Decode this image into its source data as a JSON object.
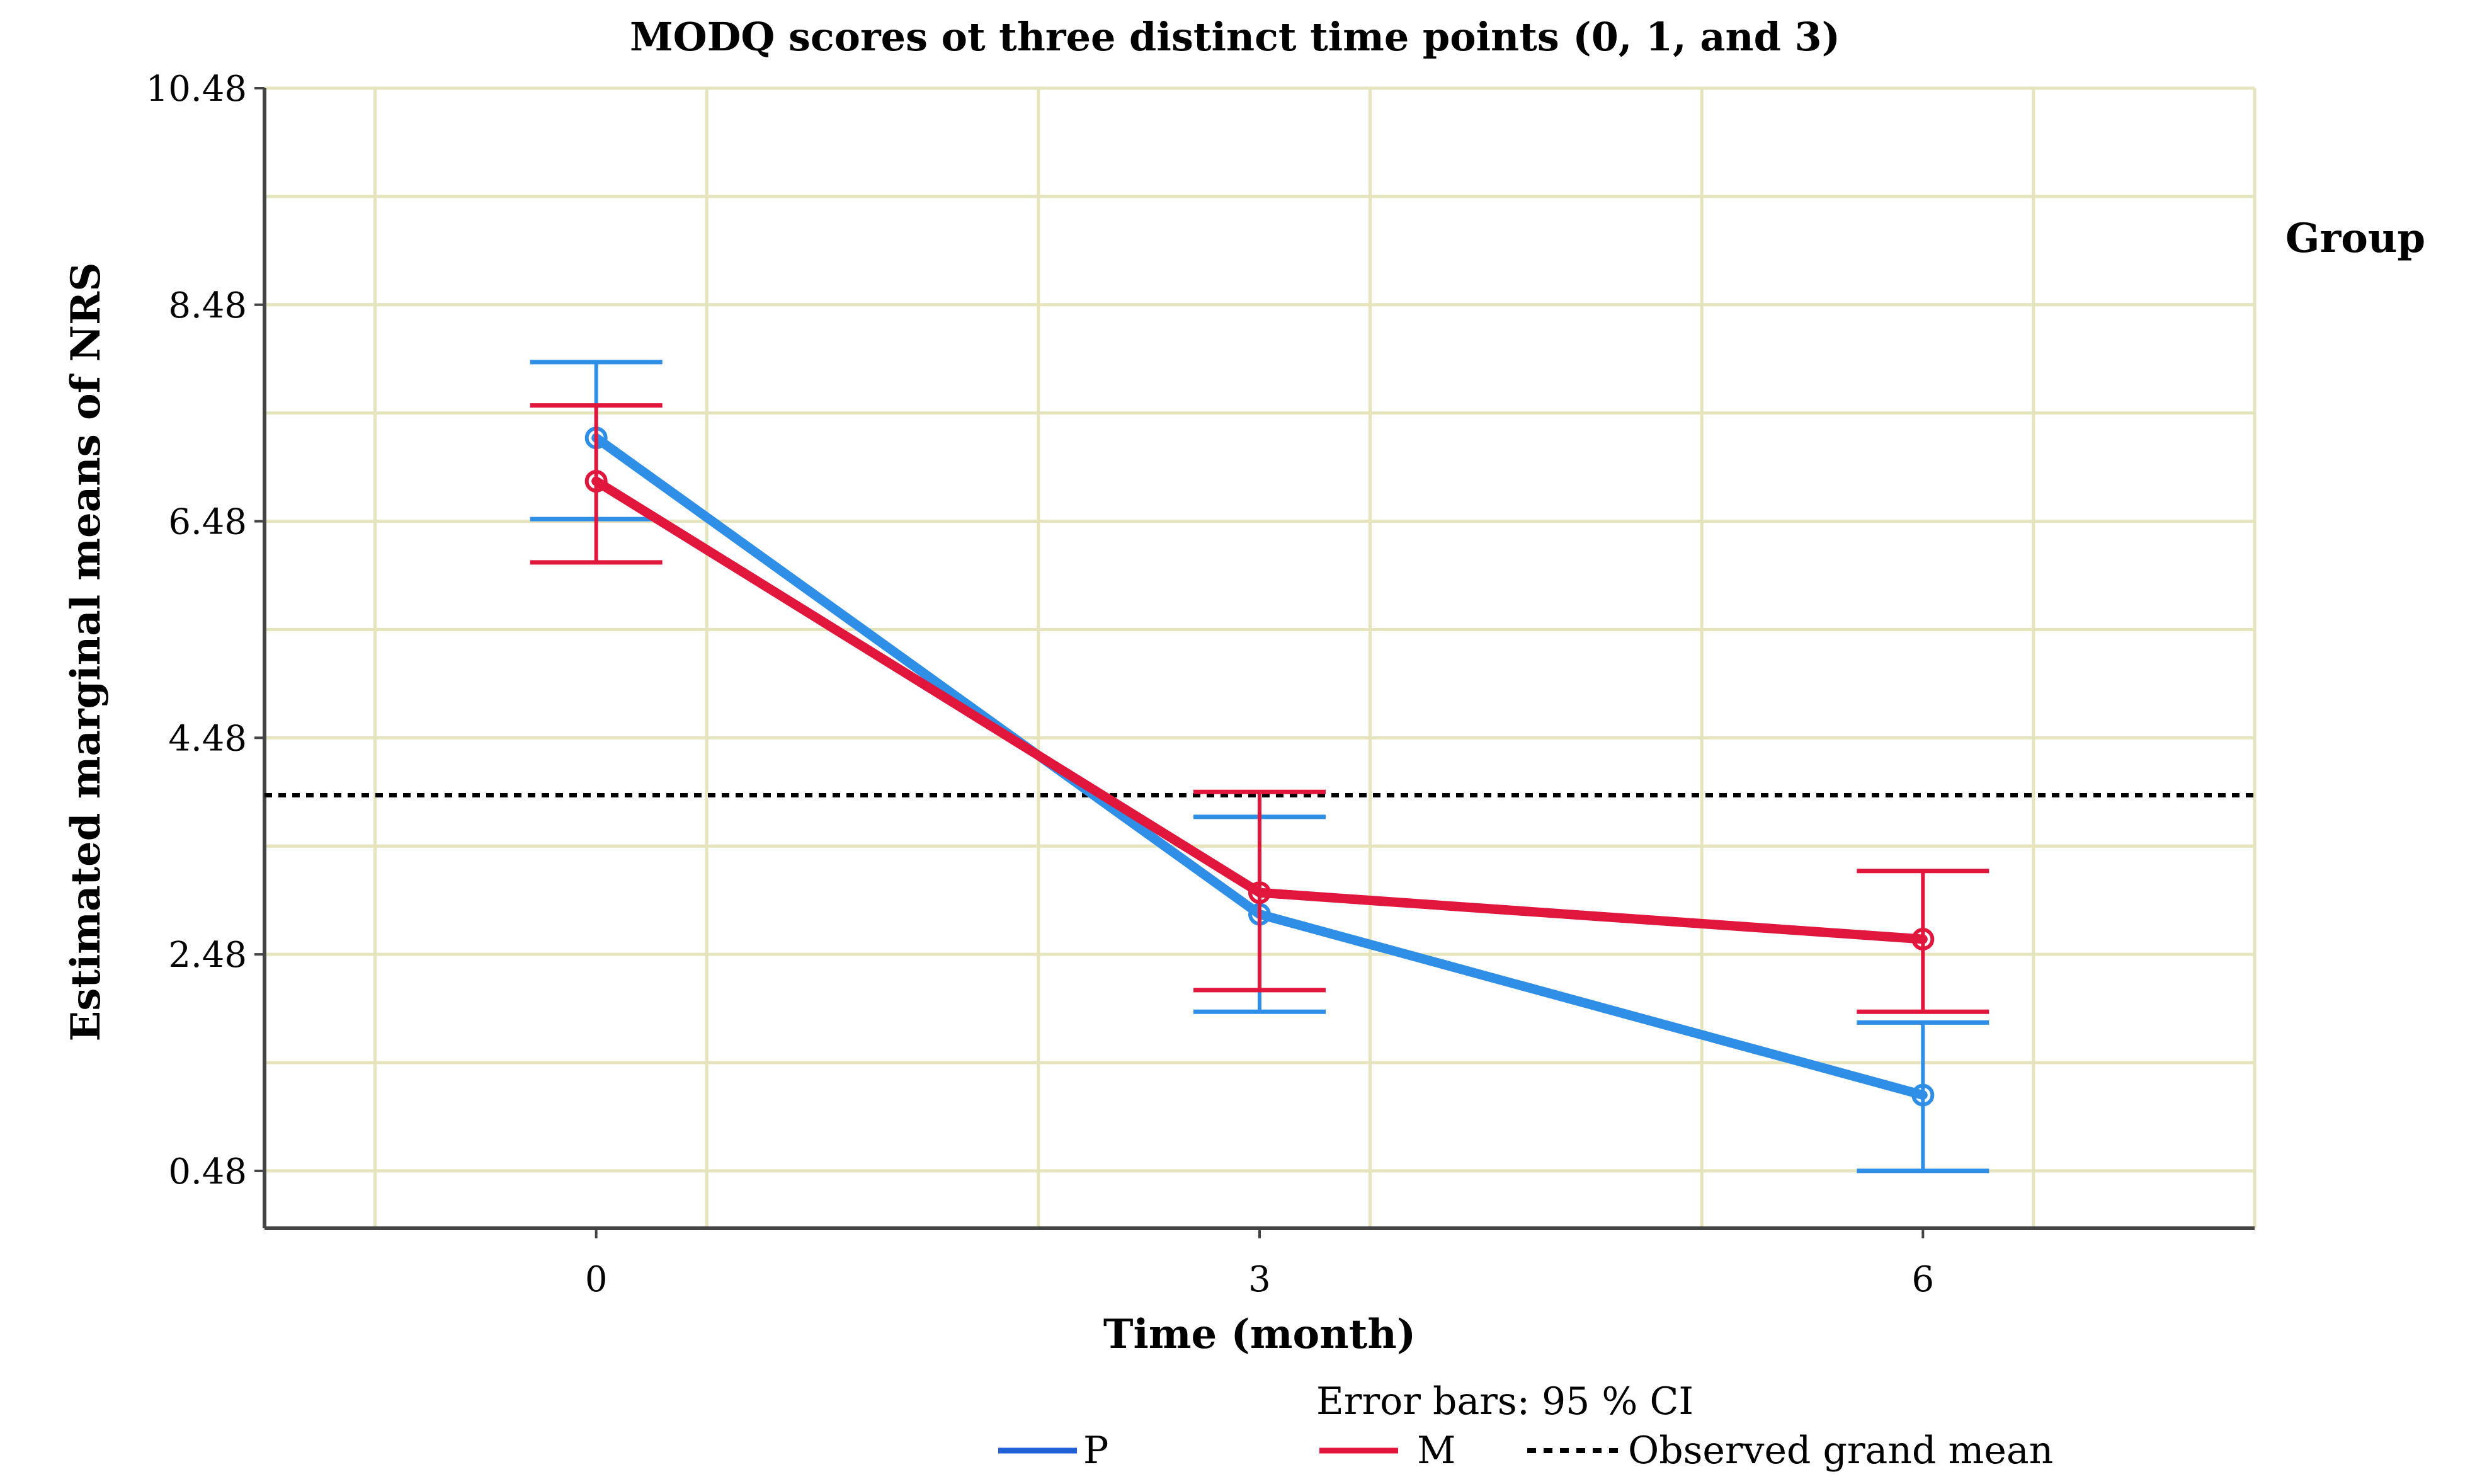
{
  "chart_data": {
    "type": "line",
    "title": "MODQ scores ot three distinct time points (0, 1, and 3)",
    "xlabel": "Time (month)",
    "ylabel": "Estimated marginal means of NRS",
    "x": [
      "0",
      "3",
      "6"
    ],
    "xlim": [
      -1.5,
      7.5
    ],
    "ylim": [
      -0.05,
      10.48
    ],
    "yticks": [
      "0.48",
      "2.48",
      "4.48",
      "6.48",
      "8.48",
      "10.48"
    ],
    "grid": true,
    "legend": {
      "title": "Group",
      "placement": "right",
      "bottom_entries": [
        "P",
        "M",
        "Observed grand mean"
      ]
    },
    "error_bar_note": "Error bars: 95 % CI",
    "grand_mean": 3.95,
    "series": [
      {
        "name": "P",
        "color": "#2f8fe6",
        "values": [
          7.25,
          2.85,
          1.18
        ],
        "ci_low": [
          6.5,
          1.95,
          0.48
        ],
        "ci_high": [
          7.95,
          3.75,
          1.85
        ]
      },
      {
        "name": "M",
        "color": "#e0163c",
        "values": [
          6.85,
          3.05,
          2.62
        ],
        "ci_low": [
          6.1,
          2.15,
          1.95
        ],
        "ci_high": [
          7.55,
          3.98,
          3.25
        ]
      }
    ],
    "colors": {
      "grid": "#e6e4bc",
      "axis": "#444444",
      "grand_mean_line": "#000000",
      "legend_p": "#1f5fd8",
      "legend_m": "#e0163c"
    }
  }
}
